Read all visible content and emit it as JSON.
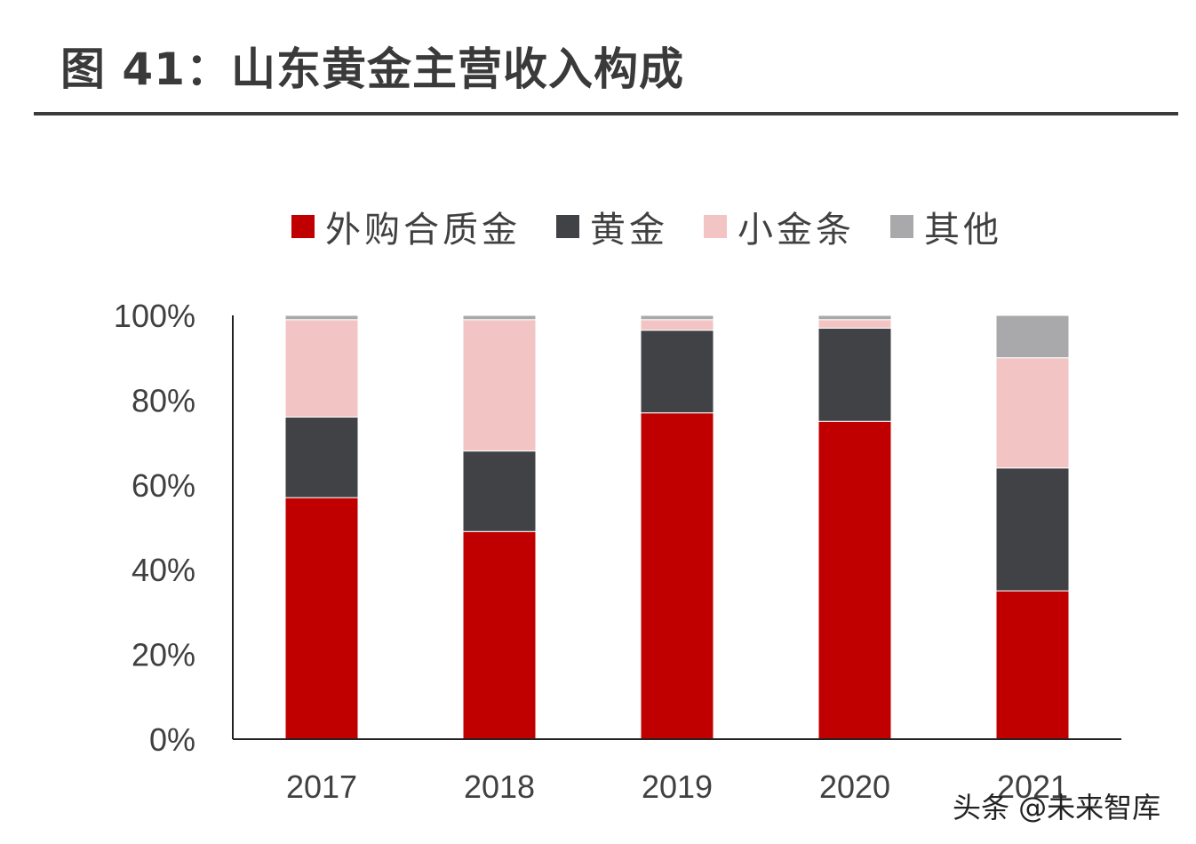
{
  "figure": {
    "title": "图 41：山东黄金主营收入构成"
  },
  "watermark": "头条 @未来智库",
  "chart_data": {
    "type": "bar",
    "stacked": true,
    "title": "图 41：山东黄金主营收入构成",
    "categories": [
      "2017",
      "2018",
      "2019",
      "2020",
      "2021"
    ],
    "series": [
      {
        "name": "外购合质金",
        "color": "#c00000",
        "values": [
          57,
          49,
          77,
          75,
          35
        ]
      },
      {
        "name": "黄金",
        "color": "#404246",
        "values": [
          19,
          19,
          19.5,
          22,
          29
        ]
      },
      {
        "name": "小金条",
        "color": "#f2c4c4",
        "values": [
          23,
          31,
          2.5,
          2,
          26
        ]
      },
      {
        "name": "其他",
        "color": "#a9a9ab",
        "values": [
          1,
          1,
          1,
          1,
          10
        ]
      }
    ],
    "yticks": [
      "0%",
      "20%",
      "40%",
      "60%",
      "80%",
      "100%"
    ],
    "ylim": [
      0,
      100
    ],
    "xlabel": "",
    "ylabel": "",
    "legend_position": "top"
  }
}
